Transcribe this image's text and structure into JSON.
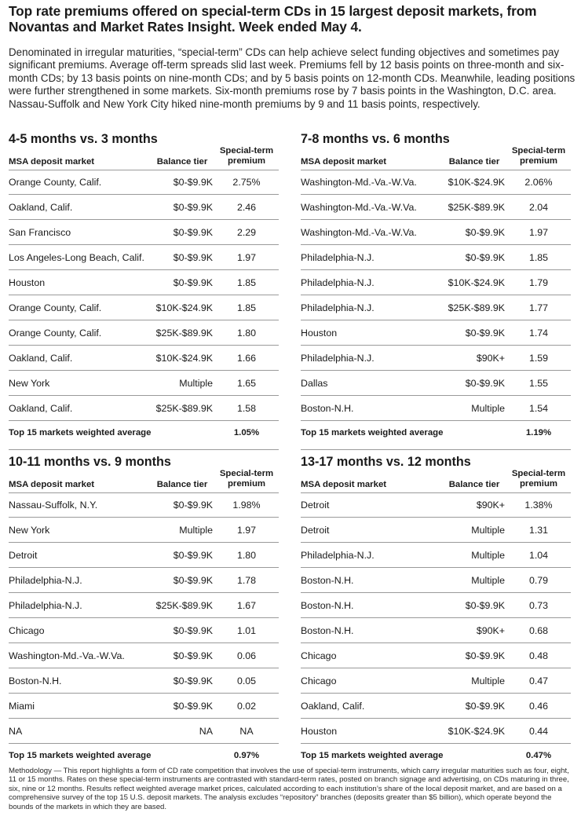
{
  "title": "Top rate premiums offered on special-term CDs in 15 largest deposit markets, from Novantas and Market Rates Insight. Week ended May 4.",
  "intro": "Denominated in irregular maturities, “special-term” CDs can help achieve select funding objectives and sometimes pay significant premiums. Average off-term spreads slid last week. Premiums fell by 12 basis points on three-month and six-month CDs; by 13 basis points on nine-month CDs; and by 5 basis points on 12-month CDs. Meanwhile, leading positions were further strengthened in some markets. Six-month premiums rose by 7 basis points in the Washington, D.C. area. Nassau-Suffolk and New York City hiked nine-month premiums by 9 and 11 basis points, respectively.",
  "headers": {
    "market": "MSA deposit market",
    "tier": "Balance tier",
    "premium_line1": "Special-term",
    "premium_line2": "premium",
    "avg_label": "Top 15 markets weighted average"
  },
  "panels": [
    {
      "title": "4-5 months vs. 3 months",
      "avg": "1.05%",
      "rows": [
        {
          "market": "Orange County, Calif.",
          "tier": "$0-$9.9K",
          "premium": "2.75%"
        },
        {
          "market": "Oakland, Calif.",
          "tier": "$0-$9.9K",
          "premium": "2.46"
        },
        {
          "market": "San Francisco",
          "tier": "$0-$9.9K",
          "premium": "2.29"
        },
        {
          "market": "Los Angeles-Long Beach, Calif.",
          "tier": "$0-$9.9K",
          "premium": "1.97"
        },
        {
          "market": "Houston",
          "tier": "$0-$9.9K",
          "premium": "1.85"
        },
        {
          "market": "Orange County, Calif.",
          "tier": "$10K-$24.9K",
          "premium": "1.85"
        },
        {
          "market": "Orange County, Calif.",
          "tier": "$25K-$89.9K",
          "premium": "1.80"
        },
        {
          "market": "Oakland, Calif.",
          "tier": "$10K-$24.9K",
          "premium": "1.66"
        },
        {
          "market": "New York",
          "tier": "Multiple",
          "premium": "1.65"
        },
        {
          "market": "Oakland, Calif.",
          "tier": "$25K-$89.9K",
          "premium": "1.58"
        }
      ]
    },
    {
      "title": "7-8 months vs. 6 months",
      "avg": "1.19%",
      "rows": [
        {
          "market": "Washington-Md.-Va.-W.Va.",
          "tier": "$10K-$24.9K",
          "premium": "2.06%"
        },
        {
          "market": "Washington-Md.-Va.-W.Va.",
          "tier": "$25K-$89.9K",
          "premium": "2.04"
        },
        {
          "market": "Washington-Md.-Va.-W.Va.",
          "tier": "$0-$9.9K",
          "premium": "1.97"
        },
        {
          "market": "Philadelphia-N.J.",
          "tier": "$0-$9.9K",
          "premium": "1.85"
        },
        {
          "market": "Philadelphia-N.J.",
          "tier": "$10K-$24.9K",
          "premium": "1.79"
        },
        {
          "market": "Philadelphia-N.J.",
          "tier": "$25K-$89.9K",
          "premium": "1.77"
        },
        {
          "market": "Houston",
          "tier": "$0-$9.9K",
          "premium": "1.74"
        },
        {
          "market": "Philadelphia-N.J.",
          "tier": "$90K+",
          "premium": "1.59"
        },
        {
          "market": "Dallas",
          "tier": "$0-$9.9K",
          "premium": "1.55"
        },
        {
          "market": "Boston-N.H.",
          "tier": "Multiple",
          "premium": "1.54"
        }
      ]
    },
    {
      "title": "10-11 months vs. 9 months",
      "avg": "0.97%",
      "rows": [
        {
          "market": "Nassau-Suffolk, N.Y.",
          "tier": "$0-$9.9K",
          "premium": "1.98%"
        },
        {
          "market": "New York",
          "tier": "Multiple",
          "premium": "1.97"
        },
        {
          "market": "Detroit",
          "tier": "$0-$9.9K",
          "premium": "1.80"
        },
        {
          "market": "Philadelphia-N.J.",
          "tier": "$0-$9.9K",
          "premium": "1.78"
        },
        {
          "market": "Philadelphia-N.J.",
          "tier": "$25K-$89.9K",
          "premium": "1.67"
        },
        {
          "market": "Chicago",
          "tier": "$0-$9.9K",
          "premium": "1.01"
        },
        {
          "market": "Washington-Md.-Va.-W.Va.",
          "tier": "$0-$9.9K",
          "premium": "0.06"
        },
        {
          "market": "Boston-N.H.",
          "tier": "$0-$9.9K",
          "premium": "0.05"
        },
        {
          "market": "Miami",
          "tier": "$0-$9.9K",
          "premium": "0.02"
        },
        {
          "market": "NA",
          "tier": "NA",
          "premium": "NA"
        }
      ]
    },
    {
      "title": "13-17 months vs. 12 months",
      "avg": "0.47%",
      "rows": [
        {
          "market": "Detroit",
          "tier": "$90K+",
          "premium": "1.38%"
        },
        {
          "market": "Detroit",
          "tier": "Multiple",
          "premium": "1.31"
        },
        {
          "market": "Philadelphia-N.J.",
          "tier": "Multiple",
          "premium": "1.04"
        },
        {
          "market": "Boston-N.H.",
          "tier": "Multiple",
          "premium": "0.79"
        },
        {
          "market": "Boston-N.H.",
          "tier": "$0-$9.9K",
          "premium": "0.73"
        },
        {
          "market": "Boston-N.H.",
          "tier": "$90K+",
          "premium": "0.68"
        },
        {
          "market": "Chicago",
          "tier": "$0-$9.9K",
          "premium": "0.48"
        },
        {
          "market": "Chicago",
          "tier": "Multiple",
          "premium": "0.47"
        },
        {
          "market": "Oakland, Calif.",
          "tier": "$0-$9.9K",
          "premium": "0.46"
        },
        {
          "market": "Houston",
          "tier": "$10K-$24.9K",
          "premium": "0.44"
        }
      ]
    }
  ],
  "methodology": "Methodology — This report highlights a form of CD rate competition that involves the use of special-term instruments, which carry irregular maturities such as four, eight, 11 or 15 months. Rates on these special-term instruments are contrasted with standard-term rates, posted on branch signage and advertising, on CDs maturing in three, six, nine or 12 months. Results reflect weighted average market prices, calculated according to each institution’s share of the local deposit market, and are based on a comprehensive survey of the top 15 U.S. deposit markets. The analysis excludes “repository” branches (deposits greater than $5 billion), which operate beyond the bounds of the markets in which they are based."
}
